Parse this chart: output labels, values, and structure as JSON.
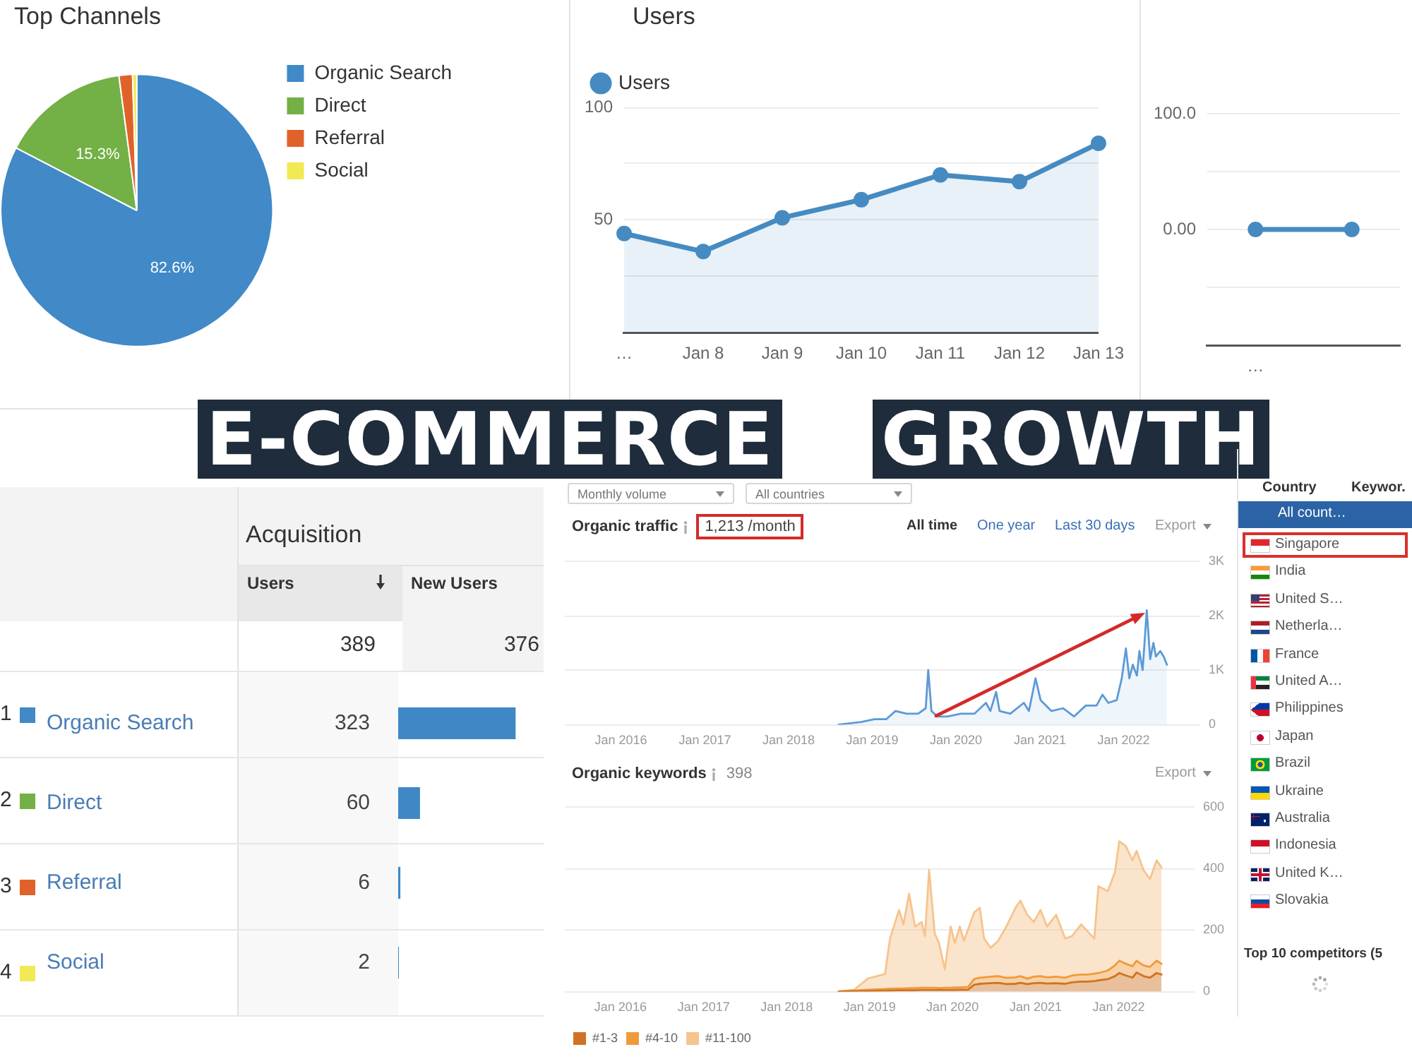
{
  "chart_data": [
    {
      "type": "pie",
      "title": "Top Channels",
      "categories": [
        "Organic Search",
        "Direct",
        "Referral",
        "Social"
      ],
      "values": [
        82.6,
        15.3,
        1.6,
        0.5
      ],
      "colors": [
        "#4189c7",
        "#73b046",
        "#e0622a",
        "#f1ea54"
      ],
      "value_labels": [
        "82.6%",
        "15.3%",
        null,
        null
      ],
      "legend": "right"
    },
    {
      "type": "area",
      "title": "Users",
      "categories": [
        "…",
        "Jan 8",
        "Jan 9",
        "Jan 10",
        "Jan 11",
        "Jan 12",
        "Jan 13"
      ],
      "series": [
        {
          "name": "Users",
          "color": "#458bc1",
          "values": [
            44,
            36,
            51,
            59,
            70,
            67,
            84
          ]
        }
      ],
      "ylim": [
        0,
        100
      ],
      "yticks": [
        {
          "value": 0,
          "label": null
        },
        {
          "value": 25,
          "label": null
        },
        50,
        {
          "value": 75,
          "label": null
        },
        100
      ],
      "grid": "y",
      "legend": "top left",
      "marker": "circle"
    },
    {
      "type": "line",
      "categories": [
        "…",
        null
      ],
      "series": [
        {
          "color": "#458bc1",
          "values": [
            0,
            0
          ]
        }
      ],
      "ylim": [
        -100,
        100
      ],
      "yticks": [
        {
          "value": -100,
          "label": null
        },
        {
          "value": -50,
          "label": null
        },
        {
          "value": 0,
          "label": "0.00"
        },
        {
          "value": 50,
          "label": null
        },
        {
          "value": 100,
          "label": "100.0"
        }
      ],
      "grid": "y",
      "marker": "circle"
    },
    {
      "type": "other",
      "annotations": [
        "E-COMMERCE",
        "GROWTH"
      ]
    },
    {
      "type": "bar",
      "orientation": "horizontal",
      "title": "Acquisition",
      "xlabel": "Users",
      "categories": [
        "Organic Search",
        "Direct",
        "Referral",
        "Social"
      ],
      "values": [
        323,
        60,
        6,
        2
      ],
      "color": "#3f88c5",
      "data_labels": true,
      "annotations": [
        "New Users",
        "389",
        "376",
        "1",
        "2",
        "3",
        "4"
      ]
    },
    {
      "type": "area",
      "title": "Organic traffic",
      "subtitle": "1,213 /month",
      "x": [
        "2018-08-07",
        "2018-11-14",
        "2019-01-11",
        "2019-03-03",
        "2019-04-12",
        "2019-05-30",
        "2019-07-20",
        "2019-08-22",
        "2019-09-02",
        "2019-09-16",
        "2019-10-12",
        "2019-11-25",
        "2020-01-22",
        "2020-03-21",
        "2020-05-11",
        "2020-05-30",
        "2020-06-24",
        "2020-07-09",
        "2020-08-25",
        "2020-10-23",
        "2020-11-14",
        "2020-12-13",
        "2021-01-04",
        "2021-02-20",
        "2021-04-12",
        "2021-05-30",
        "2021-07-20",
        "2021-09-05",
        "2021-10-01",
        "2021-10-26",
        "2021-12-02",
        "2021-12-24",
        "2022-01-11",
        "2022-01-26",
        "2022-02-10",
        "2022-02-28",
        "2022-03-11",
        "2022-03-25",
        "2022-04-12",
        "2022-04-27",
        "2022-05-11",
        "2022-05-22",
        "2022-06-10",
        "2022-06-25",
        "2022-07-09"
      ],
      "series": [
        {
          "color": "#5d9ad6",
          "values": [
            0,
            50,
            100,
            100,
            250,
            200,
            200,
            300,
            1000,
            250,
            150,
            150,
            200,
            200,
            400,
            250,
            600,
            250,
            200,
            400,
            250,
            850,
            450,
            250,
            300,
            150,
            350,
            350,
            550,
            400,
            450,
            850,
            1400,
            850,
            1100,
            900,
            1350,
            1000,
            2100,
            1200,
            1500,
            1250,
            1350,
            1250,
            1100
          ]
        }
      ],
      "xlim": [
        "2015-05",
        "2022-12"
      ],
      "xticks": [
        {
          "value": "2016-01",
          "label": "Jan 2016"
        },
        {
          "value": "2017-01",
          "label": "Jan 2017"
        },
        {
          "value": "2018-01",
          "label": "Jan 2018"
        },
        {
          "value": "2019-01",
          "label": "Jan 2019"
        },
        {
          "value": "2020-01",
          "label": "Jan 2020"
        },
        {
          "value": "2021-01",
          "label": "Jan 2021"
        },
        {
          "value": "2022-01",
          "label": "Jan 2022"
        }
      ],
      "ylim": [
        0,
        3000
      ],
      "yticks": [
        0,
        {
          "value": 1000,
          "label": "1K"
        },
        {
          "value": 2000,
          "label": "2K"
        },
        {
          "value": 3000,
          "label": "3K"
        }
      ],
      "grid": "y",
      "annotations": [
        "Monthly volume",
        "All countries",
        "All time",
        "One year",
        "Last 30 days",
        "Export"
      ]
    },
    {
      "type": "area",
      "stacked": true,
      "title": "Organic keywords",
      "subtitle": "398",
      "x": [
        "2018-08-18",
        "2018-10-26",
        "2018-12-24",
        "2019-03-10",
        "2019-04-01",
        "2019-05-11",
        "2019-05-30",
        "2019-06-24",
        "2019-07-20",
        "2019-08-18",
        "2019-09-02",
        "2019-09-20",
        "2019-10-15",
        "2019-11-03",
        "2019-11-28",
        "2019-12-24",
        "2020-01-11",
        "2020-02-02",
        "2020-02-20",
        "2020-03-10",
        "2020-04-05",
        "2020-04-30",
        "2020-05-19",
        "2020-06-17",
        "2020-07-20",
        "2020-08-25",
        "2020-10-04",
        "2020-10-26",
        "2020-11-25",
        "2020-12-24",
        "2021-01-22",
        "2021-02-20",
        "2021-04-01",
        "2021-05-11",
        "2021-06-10",
        "2021-07-20",
        "2021-08-18",
        "2021-09-16",
        "2021-10-04",
        "2021-11-14",
        "2021-12-16",
        "2022-01-04",
        "2022-02-02",
        "2022-03-03",
        "2022-03-21",
        "2022-04-20",
        "2022-05-19",
        "2022-06-17",
        "2022-07-09"
      ],
      "series": [
        {
          "name": "#1-3",
          "color": "#cf7322",
          "values": [
            0,
            1,
            2,
            3,
            3,
            4,
            4,
            4,
            4,
            5,
            5,
            5,
            5,
            5,
            5,
            5,
            5,
            6,
            6,
            6,
            22,
            25,
            26,
            27,
            28,
            24,
            25,
            28,
            24,
            27,
            28,
            26,
            27,
            25,
            30,
            32,
            32,
            34,
            36,
            40,
            50,
            60,
            52,
            45,
            62,
            50,
            45,
            60,
            55
          ]
        },
        {
          "name": "#4-10",
          "color": "#f09a3c",
          "values": [
            0,
            2,
            4,
            5,
            6,
            6,
            6,
            7,
            7,
            7,
            7,
            7,
            7,
            6,
            7,
            7,
            8,
            7,
            8,
            9,
            18,
            20,
            20,
            21,
            22,
            20,
            21,
            22,
            18,
            21,
            22,
            20,
            21,
            20,
            22,
            23,
            23,
            24,
            24,
            28,
            35,
            40,
            38,
            37,
            38,
            35,
            35,
            40,
            35
          ]
        },
        {
          "name": "#11-100",
          "color": "#f6c48e",
          "values": [
            0,
            3,
            36,
            49,
            163,
            255,
            208,
            307,
            200,
            214,
            168,
            383,
            176,
            146,
            60,
            199,
            144,
            198,
            151,
            188,
            217,
            227,
            126,
            94,
            115,
            167,
            226,
            245,
            207,
            178,
            215,
            165,
            201,
            127,
            128,
            163,
            140,
            114,
            282,
            258,
            303,
            388,
            382,
            344,
            357,
            310,
            285,
            326,
            313
          ]
        }
      ],
      "xlim": [
        "2015-05",
        "2022-12"
      ],
      "xticks": [
        {
          "value": "2016-01",
          "label": "Jan 2016"
        },
        {
          "value": "2017-01",
          "label": "Jan 2017"
        },
        {
          "value": "2018-01",
          "label": "Jan 2018"
        },
        {
          "value": "2019-01",
          "label": "Jan 2019"
        },
        {
          "value": "2020-01",
          "label": "Jan 2020"
        },
        {
          "value": "2021-01",
          "label": "Jan 2021"
        },
        {
          "value": "2022-01",
          "label": "Jan 2022"
        }
      ],
      "ylim": [
        0,
        600
      ],
      "yticks": [
        0,
        200,
        400,
        600
      ],
      "grid": "y",
      "legend": "bottom left",
      "annotations": [
        "Export"
      ]
    },
    {
      "type": "other",
      "annotations": [
        "Country",
        "Keywor.",
        "All count…",
        "Singapore",
        "India",
        "United S…",
        "Netherla…",
        "France",
        "United A…",
        "Philippines",
        "Japan",
        "Brazil",
        "Ukraine",
        "Australia",
        "Indonesia",
        "United K…",
        "Slovakia",
        "Top 10 competitors (5"
      ]
    }
  ]
}
